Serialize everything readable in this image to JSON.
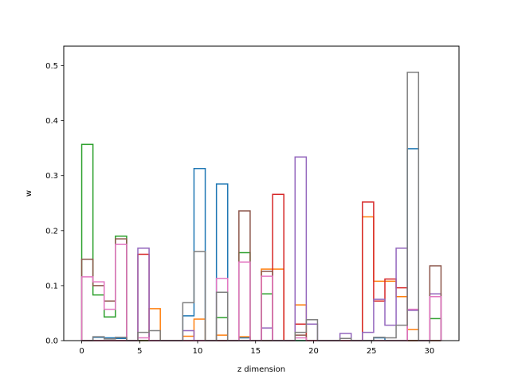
{
  "chart_data": {
    "type": "step",
    "xlabel": "z dimension",
    "ylabel": "w",
    "xlim": [
      -1.55,
      32.55
    ],
    "ylim": [
      0,
      0.5355
    ],
    "xticks": [
      0,
      5,
      10,
      15,
      20,
      25,
      30
    ],
    "yticks": [
      0.0,
      0.1,
      0.2,
      0.3,
      0.4,
      0.5
    ],
    "bins": 32,
    "series": [
      {
        "color": "#1f77b4",
        "values": [
          0,
          0.006,
          0.005,
          0.004,
          0,
          0,
          0,
          0,
          0,
          0.045,
          0.313,
          0,
          0.285,
          0,
          0.005,
          0,
          0,
          0,
          0,
          0,
          0,
          0,
          0,
          0,
          0,
          0,
          0.005,
          0,
          0,
          0.349,
          0,
          0
        ]
      },
      {
        "color": "#ff7f0e",
        "values": [
          0,
          0,
          0,
          0,
          0,
          0,
          0.058,
          0,
          0,
          0.008,
          0.039,
          0,
          0.01,
          0,
          0.007,
          0,
          0.13,
          0.13,
          0,
          0.065,
          0,
          0,
          0,
          0,
          0,
          0.225,
          0.108,
          0.108,
          0.08,
          0.02,
          0,
          0
        ]
      },
      {
        "color": "#2ca02c",
        "values": [
          0.357,
          0.083,
          0.043,
          0.19,
          0,
          0,
          0,
          0,
          0,
          0,
          0,
          0,
          0.042,
          0,
          0.16,
          0,
          0.085,
          0,
          0,
          0,
          0,
          0,
          0,
          0,
          0,
          0,
          0,
          0,
          0,
          0,
          0,
          0.04
        ]
      },
      {
        "color": "#d62728",
        "values": [
          0,
          0,
          0,
          0,
          0,
          0.157,
          0,
          0,
          0,
          0,
          0,
          0,
          0,
          0,
          0,
          0,
          0,
          0.266,
          0,
          0.03,
          0,
          0,
          0,
          0,
          0,
          0.252,
          0.072,
          0.112,
          0.096,
          0,
          0,
          0
        ]
      },
      {
        "color": "#9467bd",
        "values": [
          0,
          0,
          0,
          0,
          0,
          0.168,
          0,
          0,
          0,
          0.018,
          0,
          0,
          0,
          0,
          0,
          0,
          0.023,
          0,
          0,
          0.334,
          0.03,
          0,
          0,
          0.013,
          0,
          0.015,
          0.075,
          0.028,
          0.168,
          0.055,
          0,
          0.085
        ]
      },
      {
        "color": "#8c564b",
        "values": [
          0.148,
          0.1,
          0.072,
          0.185,
          0,
          0,
          0,
          0,
          0,
          0,
          0,
          0,
          0,
          0,
          0.236,
          0,
          0.126,
          0,
          0,
          0.01,
          0,
          0,
          0,
          0,
          0,
          0,
          0,
          0,
          0,
          0,
          0,
          0.136
        ]
      },
      {
        "color": "#e377c2",
        "values": [
          0.116,
          0.107,
          0.057,
          0.175,
          0,
          0.005,
          0,
          0,
          0,
          0,
          0,
          0,
          0.113,
          0,
          0.143,
          0,
          0.117,
          0,
          0,
          0.005,
          0,
          0,
          0,
          0,
          0,
          0,
          0,
          0,
          0,
          0.057,
          0,
          0.08
        ]
      },
      {
        "color": "#7f7f7f",
        "values": [
          0,
          0.007,
          0.003,
          0.006,
          0,
          0.015,
          0.018,
          0,
          0,
          0.069,
          0.162,
          0,
          0.088,
          0,
          0,
          0,
          0,
          0,
          0,
          0.015,
          0.038,
          0,
          0,
          0.004,
          0,
          0,
          0.006,
          0.005,
          0.028,
          0.488,
          0,
          0
        ]
      }
    ]
  }
}
